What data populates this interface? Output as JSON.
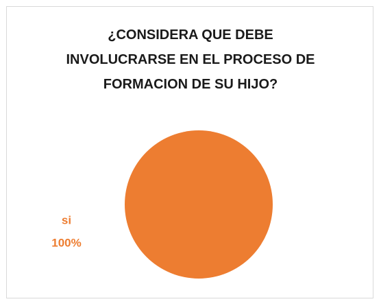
{
  "chart_data": {
    "type": "pie",
    "title": "¿CONSIDERA QUE DEBE\nINVOLUCRARSE EN EL PROCESO DE\nFORMACION DE SU HIJO?",
    "categories": [
      "si"
    ],
    "values": [
      100
    ],
    "value_labels": [
      "100%"
    ],
    "colors": [
      "#ED7D31"
    ],
    "label_color": "#ED7D31"
  }
}
